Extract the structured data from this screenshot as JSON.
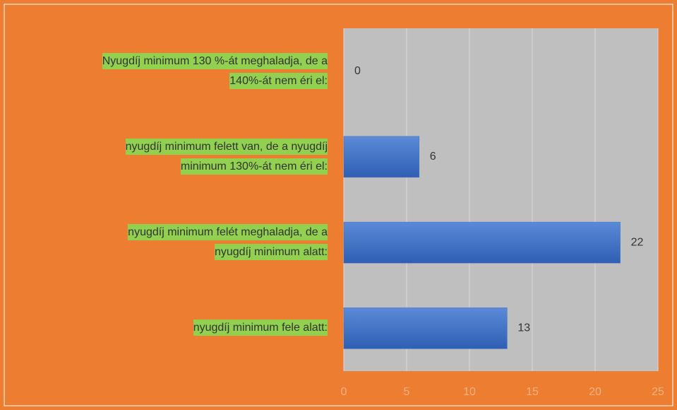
{
  "chart_data": {
    "type": "bar",
    "orientation": "horizontal",
    "categories": [
      "Nyugdíj minimum 130 %-át meghaladja, de a\n140%-át nem éri el:",
      "nyugdíj minimum felett van, de a nyugdíj\nminimum 130%-át nem éri el:",
      "nyugdíj minimum felét meghaladja, de a\nnyugdíj minimum alatt:",
      "nyugdíj minimum fele alatt:"
    ],
    "values": [
      0,
      6,
      22,
      13
    ],
    "color": "#4472c4",
    "xlim": [
      0,
      25
    ],
    "xticks": [
      0,
      5,
      10,
      15,
      20,
      25
    ],
    "grid": true
  }
}
